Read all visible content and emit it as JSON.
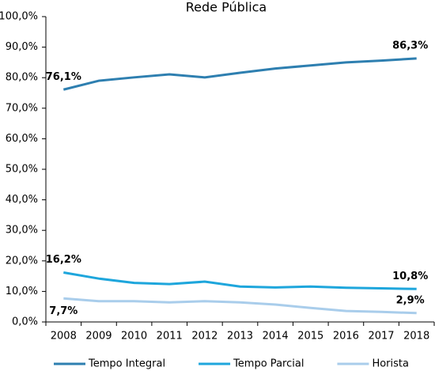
{
  "chart_data": {
    "type": "line",
    "title": "Rede Pública",
    "categories": [
      "2008",
      "2009",
      "2010",
      "2011",
      "2012",
      "2013",
      "2014",
      "2015",
      "2016",
      "2017",
      "2018"
    ],
    "series": [
      {
        "name": "Tempo Integral",
        "color": "#2e7fb0",
        "values": [
          76.1,
          79.0,
          80.1,
          81.1,
          80.1,
          81.6,
          83.0,
          84.0,
          85.0,
          85.6,
          86.3
        ],
        "value_labels": [
          "76,1%",
          null,
          null,
          null,
          null,
          null,
          null,
          null,
          null,
          null,
          "86,3%"
        ]
      },
      {
        "name": "Tempo Parcial",
        "color": "#1ea6dc",
        "values": [
          16.2,
          14.2,
          12.8,
          12.4,
          13.2,
          11.6,
          11.3,
          11.6,
          11.2,
          11.0,
          10.8
        ],
        "value_labels": [
          "16,2%",
          null,
          null,
          null,
          null,
          null,
          null,
          null,
          null,
          null,
          "10,8%"
        ]
      },
      {
        "name": "Horista",
        "color": "#a9cdeb",
        "values": [
          7.7,
          6.8,
          6.8,
          6.4,
          6.8,
          6.4,
          5.7,
          4.6,
          3.6,
          3.3,
          2.9
        ],
        "value_labels": [
          "7,7%",
          null,
          null,
          null,
          null,
          null,
          null,
          null,
          null,
          null,
          "2,9%"
        ]
      }
    ],
    "ylim": [
      0,
      100
    ],
    "yticks": [
      {
        "value": 0,
        "label": "0,0%"
      },
      {
        "value": 10,
        "label": "10,0%"
      },
      {
        "value": 20,
        "label": "20,0%"
      },
      {
        "value": 30,
        "label": "30,0%"
      },
      {
        "value": 40,
        "label": "40,0%"
      },
      {
        "value": 50,
        "label": "50,0%"
      },
      {
        "value": 60,
        "label": "60,0%"
      },
      {
        "value": 70,
        "label": "70,0%"
      },
      {
        "value": 80,
        "label": "80,0%"
      },
      {
        "value": 90,
        "label": "90,0%"
      },
      {
        "value": 100,
        "label": "100,0%"
      }
    ],
    "legend": "bottom"
  }
}
